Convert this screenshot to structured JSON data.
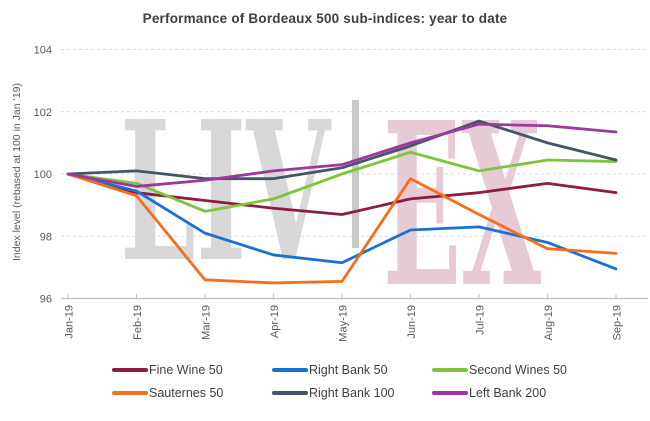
{
  "chart_data": {
    "type": "line",
    "title": "Performance of Bordeaux 500 sub-indices: year to date",
    "ylabel": "Index level (rebased at 100 in Jan ’19)",
    "xlabel": "",
    "categories": [
      "Jan-19",
      "Feb-19",
      "Mar-19",
      "Apr-19",
      "May-19",
      "Jun-19",
      "Jul-19",
      "Aug-19",
      "Sep-19"
    ],
    "yticks": [
      96,
      98,
      100,
      102,
      104
    ],
    "ylim": [
      96,
      104
    ],
    "grid": "horizontal-dashed",
    "legend_position": "bottom",
    "series": [
      {
        "name": "Fine Wine 50",
        "color": "#8E1B40",
        "values": [
          100,
          99.4,
          99.15,
          98.9,
          98.7,
          99.2,
          99.4,
          99.7,
          99.4
        ]
      },
      {
        "name": "Right Bank 50",
        "color": "#1772D4",
        "values": [
          100,
          99.45,
          98.1,
          97.4,
          97.15,
          98.2,
          98.3,
          97.8,
          96.95
        ]
      },
      {
        "name": "Second Wines 50",
        "color": "#7FC53C",
        "values": [
          100,
          99.7,
          98.8,
          99.2,
          100,
          100.7,
          100.1,
          100.45,
          100.4
        ]
      },
      {
        "name": "Sauternes 50",
        "color": "#F56E1C",
        "values": [
          100,
          99.3,
          96.6,
          96.5,
          96.55,
          99.85,
          98.7,
          97.6,
          97.45
        ]
      },
      {
        "name": "Right Bank 100",
        "color": "#43556A",
        "values": [
          100,
          100.1,
          99.85,
          99.85,
          100.2,
          100.9,
          101.7,
          101,
          100.45
        ]
      },
      {
        "name": "Left Bank 200",
        "color": "#9E37A0",
        "values": [
          100,
          99.6,
          99.8,
          100.1,
          100.3,
          101,
          101.6,
          101.55,
          101.35
        ]
      }
    ],
    "watermark": {
      "left": "LIV",
      "divider": "|",
      "right": "EX"
    },
    "colors": {
      "gridline": "#d9d9d9",
      "axis": "#c0c0c0",
      "tick_label": "#595959",
      "title": "#3f3f3f",
      "legend_text": "#3f3f3f",
      "watermark_gray": "#d8d8d8",
      "watermark_divider": "#c9c9c9",
      "watermark_pink": "#e6cbd7"
    }
  }
}
